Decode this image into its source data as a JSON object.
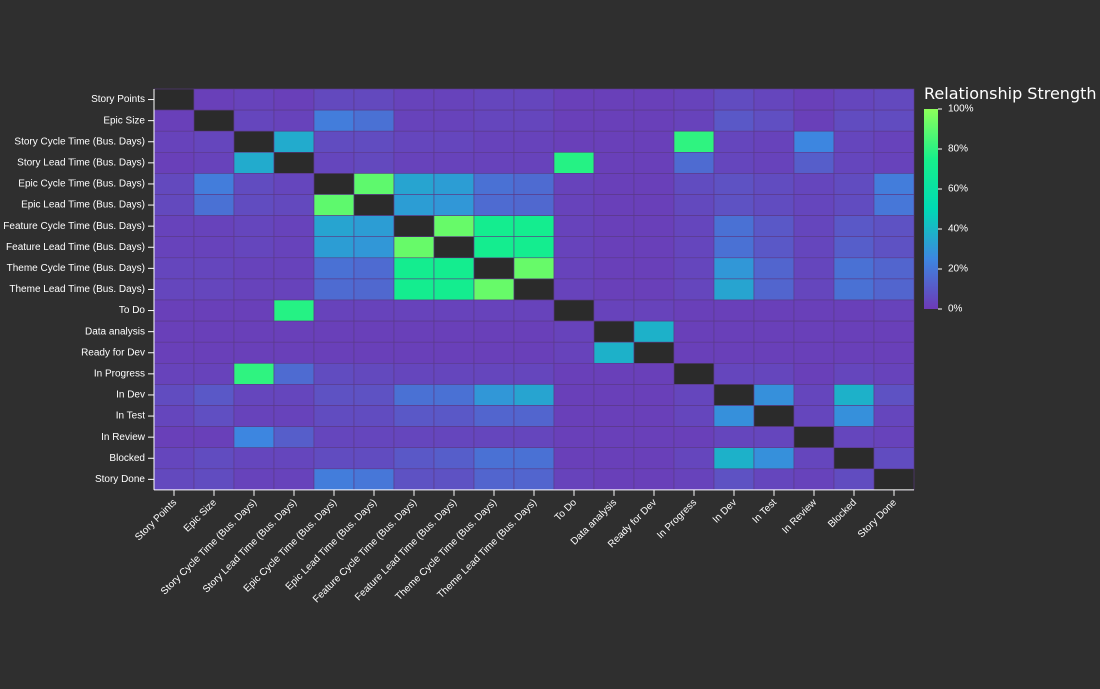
{
  "chart_data": {
    "type": "heatmap",
    "variables": [
      "Story Points",
      "Epic Size",
      "Story Cycle Time (Bus. Days)",
      "Story Lead Time (Bus. Days)",
      "Epic Cycle Time (Bus. Days)",
      "Epic Lead Time (Bus. Days)",
      "Feature Cycle Time (Bus. Days)",
      "Feature Lead Time (Bus. Days)",
      "Theme Cycle Time (Bus. Days)",
      "Theme Lead Time (Bus. Days)",
      "To Do",
      "Data analysis",
      "Ready for Dev",
      "In Progress",
      "In Dev",
      "In Test",
      "In Review",
      "Blocked",
      "Story Done"
    ],
    "values": [
      [
        null,
        0.02,
        0.03,
        0.02,
        0.05,
        0.05,
        0.03,
        0.03,
        0.04,
        0.04,
        0.02,
        0.02,
        0.02,
        0.03,
        0.06,
        0.04,
        0.02,
        0.04,
        0.05
      ],
      [
        0.02,
        null,
        0.04,
        0.03,
        0.22,
        0.18,
        0.03,
        0.03,
        0.04,
        0.04,
        0.02,
        0.02,
        0.02,
        0.03,
        0.1,
        0.07,
        0.02,
        0.06,
        0.06
      ],
      [
        0.03,
        0.04,
        null,
        0.36,
        0.06,
        0.06,
        0.04,
        0.04,
        0.03,
        0.03,
        0.02,
        0.02,
        0.02,
        0.8,
        0.04,
        0.03,
        0.25,
        0.04,
        0.03
      ],
      [
        0.02,
        0.03,
        0.36,
        null,
        0.04,
        0.05,
        0.03,
        0.03,
        0.03,
        0.03,
        0.78,
        0.02,
        0.02,
        0.16,
        0.04,
        0.03,
        0.12,
        0.04,
        0.03
      ],
      [
        0.05,
        0.22,
        0.06,
        0.04,
        null,
        0.9,
        0.34,
        0.32,
        0.18,
        0.16,
        0.03,
        0.02,
        0.02,
        0.06,
        0.08,
        0.06,
        0.04,
        0.06,
        0.22
      ],
      [
        0.05,
        0.18,
        0.06,
        0.05,
        0.9,
        null,
        0.32,
        0.3,
        0.16,
        0.15,
        0.03,
        0.02,
        0.02,
        0.05,
        0.08,
        0.06,
        0.04,
        0.06,
        0.2
      ],
      [
        0.03,
        0.03,
        0.04,
        0.03,
        0.34,
        0.32,
        null,
        0.92,
        0.72,
        0.72,
        0.03,
        0.02,
        0.02,
        0.04,
        0.18,
        0.1,
        0.04,
        0.1,
        0.08
      ],
      [
        0.03,
        0.03,
        0.04,
        0.03,
        0.32,
        0.3,
        0.92,
        null,
        0.72,
        0.72,
        0.03,
        0.02,
        0.02,
        0.04,
        0.18,
        0.1,
        0.04,
        0.12,
        0.08
      ],
      [
        0.04,
        0.04,
        0.03,
        0.03,
        0.18,
        0.16,
        0.72,
        0.72,
        null,
        0.92,
        0.03,
        0.02,
        0.02,
        0.04,
        0.3,
        0.14,
        0.04,
        0.18,
        0.14
      ],
      [
        0.04,
        0.04,
        0.03,
        0.03,
        0.16,
        0.15,
        0.72,
        0.72,
        0.92,
        null,
        0.03,
        0.02,
        0.02,
        0.04,
        0.34,
        0.14,
        0.04,
        0.18,
        0.14
      ],
      [
        0.02,
        0.02,
        0.02,
        0.78,
        0.03,
        0.03,
        0.03,
        0.03,
        0.03,
        0.03,
        null,
        0.03,
        0.03,
        0.02,
        0.02,
        0.02,
        0.02,
        0.02,
        0.03
      ],
      [
        0.02,
        0.02,
        0.02,
        0.02,
        0.02,
        0.02,
        0.02,
        0.02,
        0.02,
        0.02,
        0.03,
        null,
        0.38,
        0.02,
        0.02,
        0.02,
        0.02,
        0.02,
        0.02
      ],
      [
        0.02,
        0.02,
        0.02,
        0.02,
        0.02,
        0.02,
        0.02,
        0.02,
        0.02,
        0.02,
        0.03,
        0.38,
        null,
        0.02,
        0.02,
        0.02,
        0.02,
        0.02,
        0.02
      ],
      [
        0.03,
        0.03,
        0.8,
        0.16,
        0.06,
        0.05,
        0.04,
        0.04,
        0.04,
        0.04,
        0.02,
        0.02,
        0.02,
        null,
        0.04,
        0.04,
        0.02,
        0.04,
        0.03
      ],
      [
        0.06,
        0.1,
        0.04,
        0.04,
        0.08,
        0.08,
        0.18,
        0.18,
        0.3,
        0.34,
        0.02,
        0.02,
        0.02,
        0.04,
        null,
        0.28,
        0.04,
        0.38,
        0.08
      ],
      [
        0.04,
        0.07,
        0.03,
        0.03,
        0.06,
        0.06,
        0.1,
        0.1,
        0.14,
        0.14,
        0.02,
        0.02,
        0.02,
        0.04,
        0.28,
        null,
        0.04,
        0.28,
        0.04
      ],
      [
        0.02,
        0.02,
        0.25,
        0.12,
        0.04,
        0.04,
        0.04,
        0.04,
        0.04,
        0.04,
        0.02,
        0.02,
        0.02,
        0.02,
        0.04,
        0.04,
        null,
        0.04,
        0.03
      ],
      [
        0.04,
        0.06,
        0.04,
        0.04,
        0.06,
        0.06,
        0.1,
        0.12,
        0.18,
        0.18,
        0.02,
        0.02,
        0.02,
        0.04,
        0.38,
        0.28,
        0.04,
        null,
        0.06
      ],
      [
        0.05,
        0.06,
        0.03,
        0.03,
        0.22,
        0.2,
        0.08,
        0.08,
        0.14,
        0.14,
        0.03,
        0.02,
        0.02,
        0.03,
        0.08,
        0.04,
        0.03,
        0.06,
        null
      ]
    ],
    "value_range": [
      0,
      1
    ],
    "diagonal_color": "#2b2b2b",
    "colorscale": [
      "#6d3ab6",
      "#3d86e0",
      "#00d9b4",
      "#17f08a",
      "#8dff5a"
    ],
    "legend": {
      "title": "Relationship Strength",
      "ticks": [
        "100%",
        "80%",
        "60%",
        "40%",
        "20%",
        "0%"
      ],
      "position": "right"
    },
    "grid": false,
    "title": "",
    "xlabel": "",
    "ylabel": ""
  },
  "colors": {
    "background": "#2f2f2f",
    "text": "#ffffff"
  }
}
